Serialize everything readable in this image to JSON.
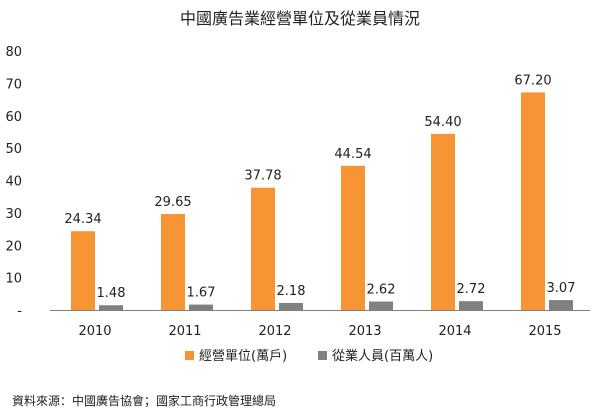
{
  "chart_data": {
    "type": "bar",
    "title": "中國廣告業經營單位及從業員情況",
    "categories": [
      "2010",
      "2011",
      "2012",
      "2013",
      "2014",
      "2015"
    ],
    "series": [
      {
        "name": "經營單位(萬戶)",
        "color": "#F79433",
        "values": [
          24.34,
          29.65,
          37.78,
          44.54,
          54.4,
          67.2
        ],
        "labels": [
          "24.34",
          "29.65",
          "37.78",
          "44.54",
          "54.40",
          "67.20"
        ]
      },
      {
        "name": "從業人員(百萬人)",
        "color": "#808080",
        "values": [
          1.48,
          1.67,
          2.18,
          2.62,
          2.72,
          3.07
        ],
        "labels": [
          "1.48",
          "1.67",
          "2.18",
          "2.62",
          "2.72",
          "3.07"
        ]
      }
    ],
    "y_ticks": [
      "-",
      "10",
      "20",
      "30",
      "40",
      "50",
      "60",
      "70",
      "80"
    ],
    "ylim": [
      0,
      80
    ],
    "xlabel": "",
    "ylabel": "",
    "grid": false,
    "legend_position": "bottom"
  },
  "source": "資料來源：中國廣告協會；國家工商行政管理總局"
}
